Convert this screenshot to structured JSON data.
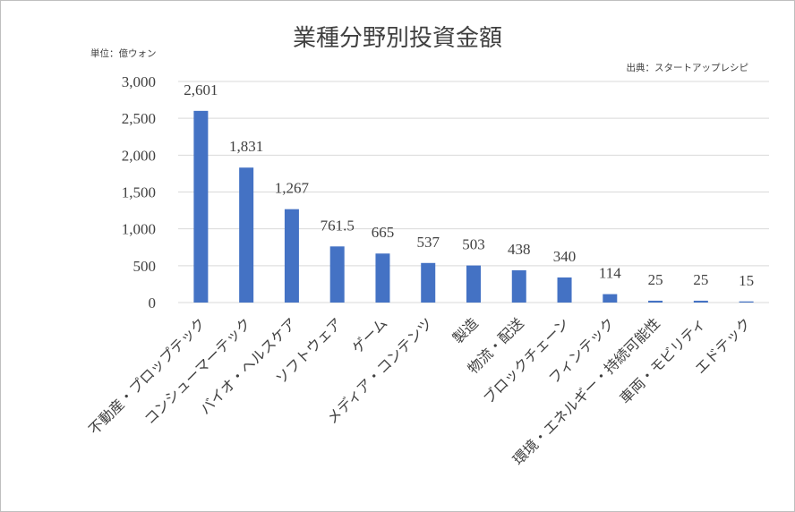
{
  "chart_data": {
    "type": "bar",
    "title": "業種分野別投資金額",
    "unit_note": "単位：億ウォン",
    "source_note": "出典：スタートアップレシピ",
    "xlabel": "",
    "ylabel": "",
    "ylim": [
      0,
      3000
    ],
    "yticks": [
      0,
      500,
      1000,
      1500,
      2000,
      2500,
      3000
    ],
    "ytick_labels": [
      "0",
      "500",
      "1,000",
      "1,500",
      "2,000",
      "2,500",
      "3,000"
    ],
    "grid": true,
    "legend": "none",
    "bar_color": "#4472C4",
    "categories": [
      "不動産・プロップテック",
      "コンシューマーテック",
      "バイオ・ヘルスケア",
      "ソフトウェア",
      "ゲーム",
      "メディア・コンテンツ",
      "製造",
      "物流・配送",
      "ブロックチェーン",
      "フィンテック",
      "環境・エネルギー・持続可能性",
      "車両・モビリティ",
      "エドテック"
    ],
    "values": [
      2601,
      1831,
      1267,
      761.5,
      665,
      537,
      503,
      438,
      340,
      114,
      25,
      25,
      15
    ],
    "value_labels": [
      "2,601",
      "1,831",
      "1,267",
      "761.5",
      "665",
      "537",
      "503",
      "438",
      "340",
      "114",
      "25",
      "25",
      "15"
    ]
  }
}
